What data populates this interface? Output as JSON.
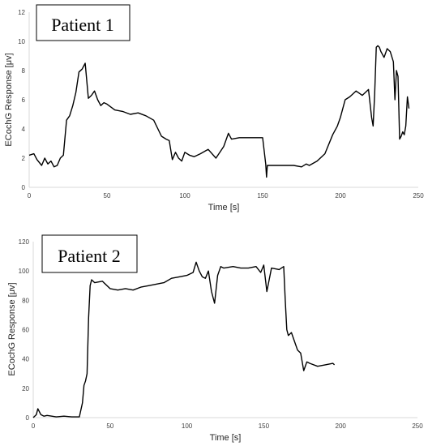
{
  "chart_data": [
    {
      "type": "line",
      "title": "Patient 1",
      "xlabel": "Time [s]",
      "ylabel": "ECochG Response [μv]",
      "xlim": [
        0,
        250
      ],
      "ylim": [
        0,
        12
      ],
      "xticks": [
        "0",
        "50",
        "100",
        "150",
        "200",
        "250"
      ],
      "yticks": [
        "0",
        "2",
        "4",
        "6",
        "8",
        "10",
        "12"
      ],
      "grid": false,
      "series": [
        {
          "x": [
            0,
            3,
            5,
            8,
            10,
            12,
            14,
            16,
            18,
            20,
            22,
            24,
            26,
            28,
            30,
            32,
            34,
            36,
            38,
            40,
            42,
            44,
            46,
            48,
            50,
            55,
            60,
            65,
            70,
            75,
            80,
            85,
            88,
            90,
            92,
            94,
            96,
            98,
            100,
            103,
            106,
            110,
            115,
            120,
            125,
            128,
            130,
            135,
            140,
            145,
            150,
            152,
            152.5,
            153,
            160,
            170,
            175,
            178,
            180,
            185,
            190,
            195,
            198,
            200,
            203,
            206,
            210,
            214,
            218,
            220,
            221,
            222,
            223,
            224,
            225,
            226,
            228,
            230,
            232,
            234,
            235,
            236,
            237,
            238,
            239,
            240,
            241,
            242,
            243,
            244
          ],
          "y": [
            2.2,
            2.3,
            1.9,
            1.5,
            2.0,
            1.6,
            1.8,
            1.4,
            1.5,
            2.0,
            2.2,
            4.6,
            4.9,
            5.6,
            6.5,
            7.9,
            8.1,
            8.5,
            6.1,
            6.3,
            6.6,
            6.0,
            5.6,
            5.8,
            5.7,
            5.3,
            5.2,
            5.0,
            5.1,
            4.9,
            4.6,
            3.5,
            3.3,
            3.2,
            1.9,
            2.4,
            2.0,
            1.8,
            2.4,
            2.2,
            2.1,
            2.3,
            2.6,
            2.0,
            2.8,
            3.7,
            3.3,
            3.4,
            3.4,
            3.4,
            3.4,
            1.6,
            0.7,
            1.5,
            1.5,
            1.5,
            1.4,
            1.6,
            1.5,
            1.8,
            2.3,
            3.6,
            4.2,
            4.8,
            6.0,
            6.2,
            6.6,
            6.3,
            6.7,
            4.8,
            4.2,
            6.4,
            9.6,
            9.7,
            9.6,
            9.3,
            8.9,
            9.5,
            9.3,
            8.6,
            6.0,
            8.0,
            7.6,
            3.3,
            3.5,
            3.8,
            3.6,
            4.2,
            6.2,
            5.4
          ]
        }
      ]
    },
    {
      "type": "line",
      "title": "Patient 2",
      "xlabel": "Time [s]",
      "ylabel": "ECochG Response [μv]",
      "xlim": [
        0,
        250
      ],
      "ylim": [
        0,
        120
      ],
      "xticks": [
        "0",
        "50",
        "100",
        "150",
        "200",
        "250"
      ],
      "yticks": [
        "0",
        "20",
        "40",
        "60",
        "80",
        "100",
        "120"
      ],
      "grid": false,
      "series": [
        {
          "x": [
            0,
            2,
            3,
            4,
            5,
            7,
            9,
            12,
            15,
            20,
            25,
            30,
            32,
            33,
            34,
            35,
            36,
            37,
            38,
            40,
            45,
            50,
            55,
            60,
            65,
            70,
            75,
            80,
            85,
            90,
            95,
            100,
            104,
            106,
            108,
            110,
            112,
            114,
            116,
            118,
            120,
            121,
            122,
            124,
            130,
            135,
            140,
            145,
            148,
            150,
            152,
            155,
            160,
            163,
            164,
            165,
            166,
            168,
            170,
            172,
            174,
            176,
            178,
            180,
            185,
            190,
            195,
            196
          ],
          "y": [
            0,
            2,
            6,
            4,
            2,
            1,
            1.5,
            1,
            0.5,
            1,
            0.5,
            0.5,
            10,
            22,
            25,
            30,
            68,
            90,
            94,
            92,
            93,
            88,
            87,
            88,
            87,
            89,
            90,
            91,
            92,
            95,
            96,
            97,
            99,
            106,
            100,
            96,
            95,
            100,
            86,
            78,
            97,
            100,
            103,
            102,
            103,
            102,
            102,
            103,
            99,
            104,
            86,
            102,
            101,
            103,
            80,
            60,
            56,
            58,
            52,
            46,
            44,
            32,
            38,
            37,
            35,
            36,
            37,
            36
          ]
        }
      ]
    }
  ]
}
